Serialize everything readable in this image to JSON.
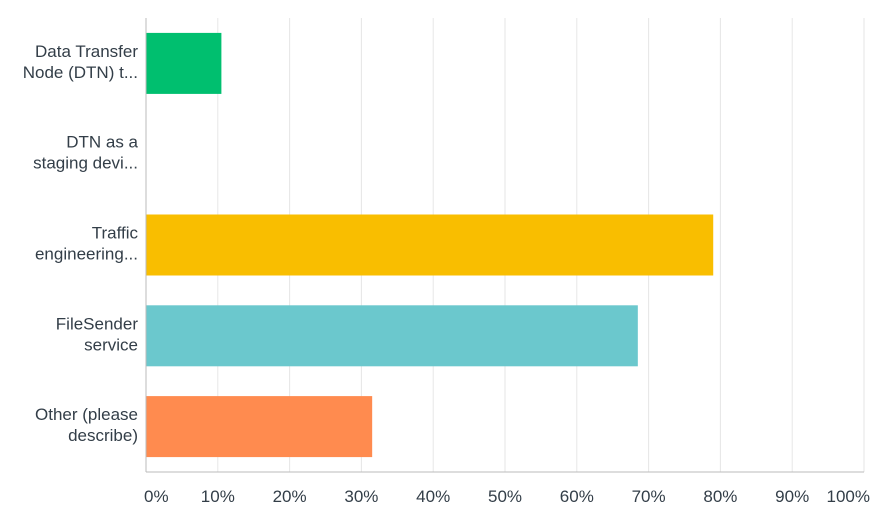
{
  "chart_data": {
    "type": "bar",
    "orientation": "horizontal",
    "categories": [
      [
        "Data Transfer",
        "Node (DTN) t..."
      ],
      [
        "DTN as a",
        "staging devi..."
      ],
      [
        "Traffic",
        "engineering..."
      ],
      [
        "FileSender",
        "service"
      ],
      [
        "Other (please",
        "describe)"
      ]
    ],
    "values": [
      10.5,
      0,
      79,
      68.5,
      31.5
    ],
    "colors": [
      "#00bf6f",
      "#507cb6",
      "#f9be00",
      "#6bc8cd",
      "#ff8b4f"
    ],
    "xlim": [
      0,
      100
    ],
    "xticks": [
      0,
      10,
      20,
      30,
      40,
      50,
      60,
      70,
      80,
      90,
      100
    ],
    "xtick_labels": [
      "0%",
      "10%",
      "20%",
      "30%",
      "40%",
      "50%",
      "60%",
      "70%",
      "80%",
      "90%",
      "100%"
    ],
    "grid": true,
    "grid_color": "#e6e6e6",
    "axis_color": "#bbbbbb",
    "text_color": "#333e48",
    "legend": "none"
  }
}
